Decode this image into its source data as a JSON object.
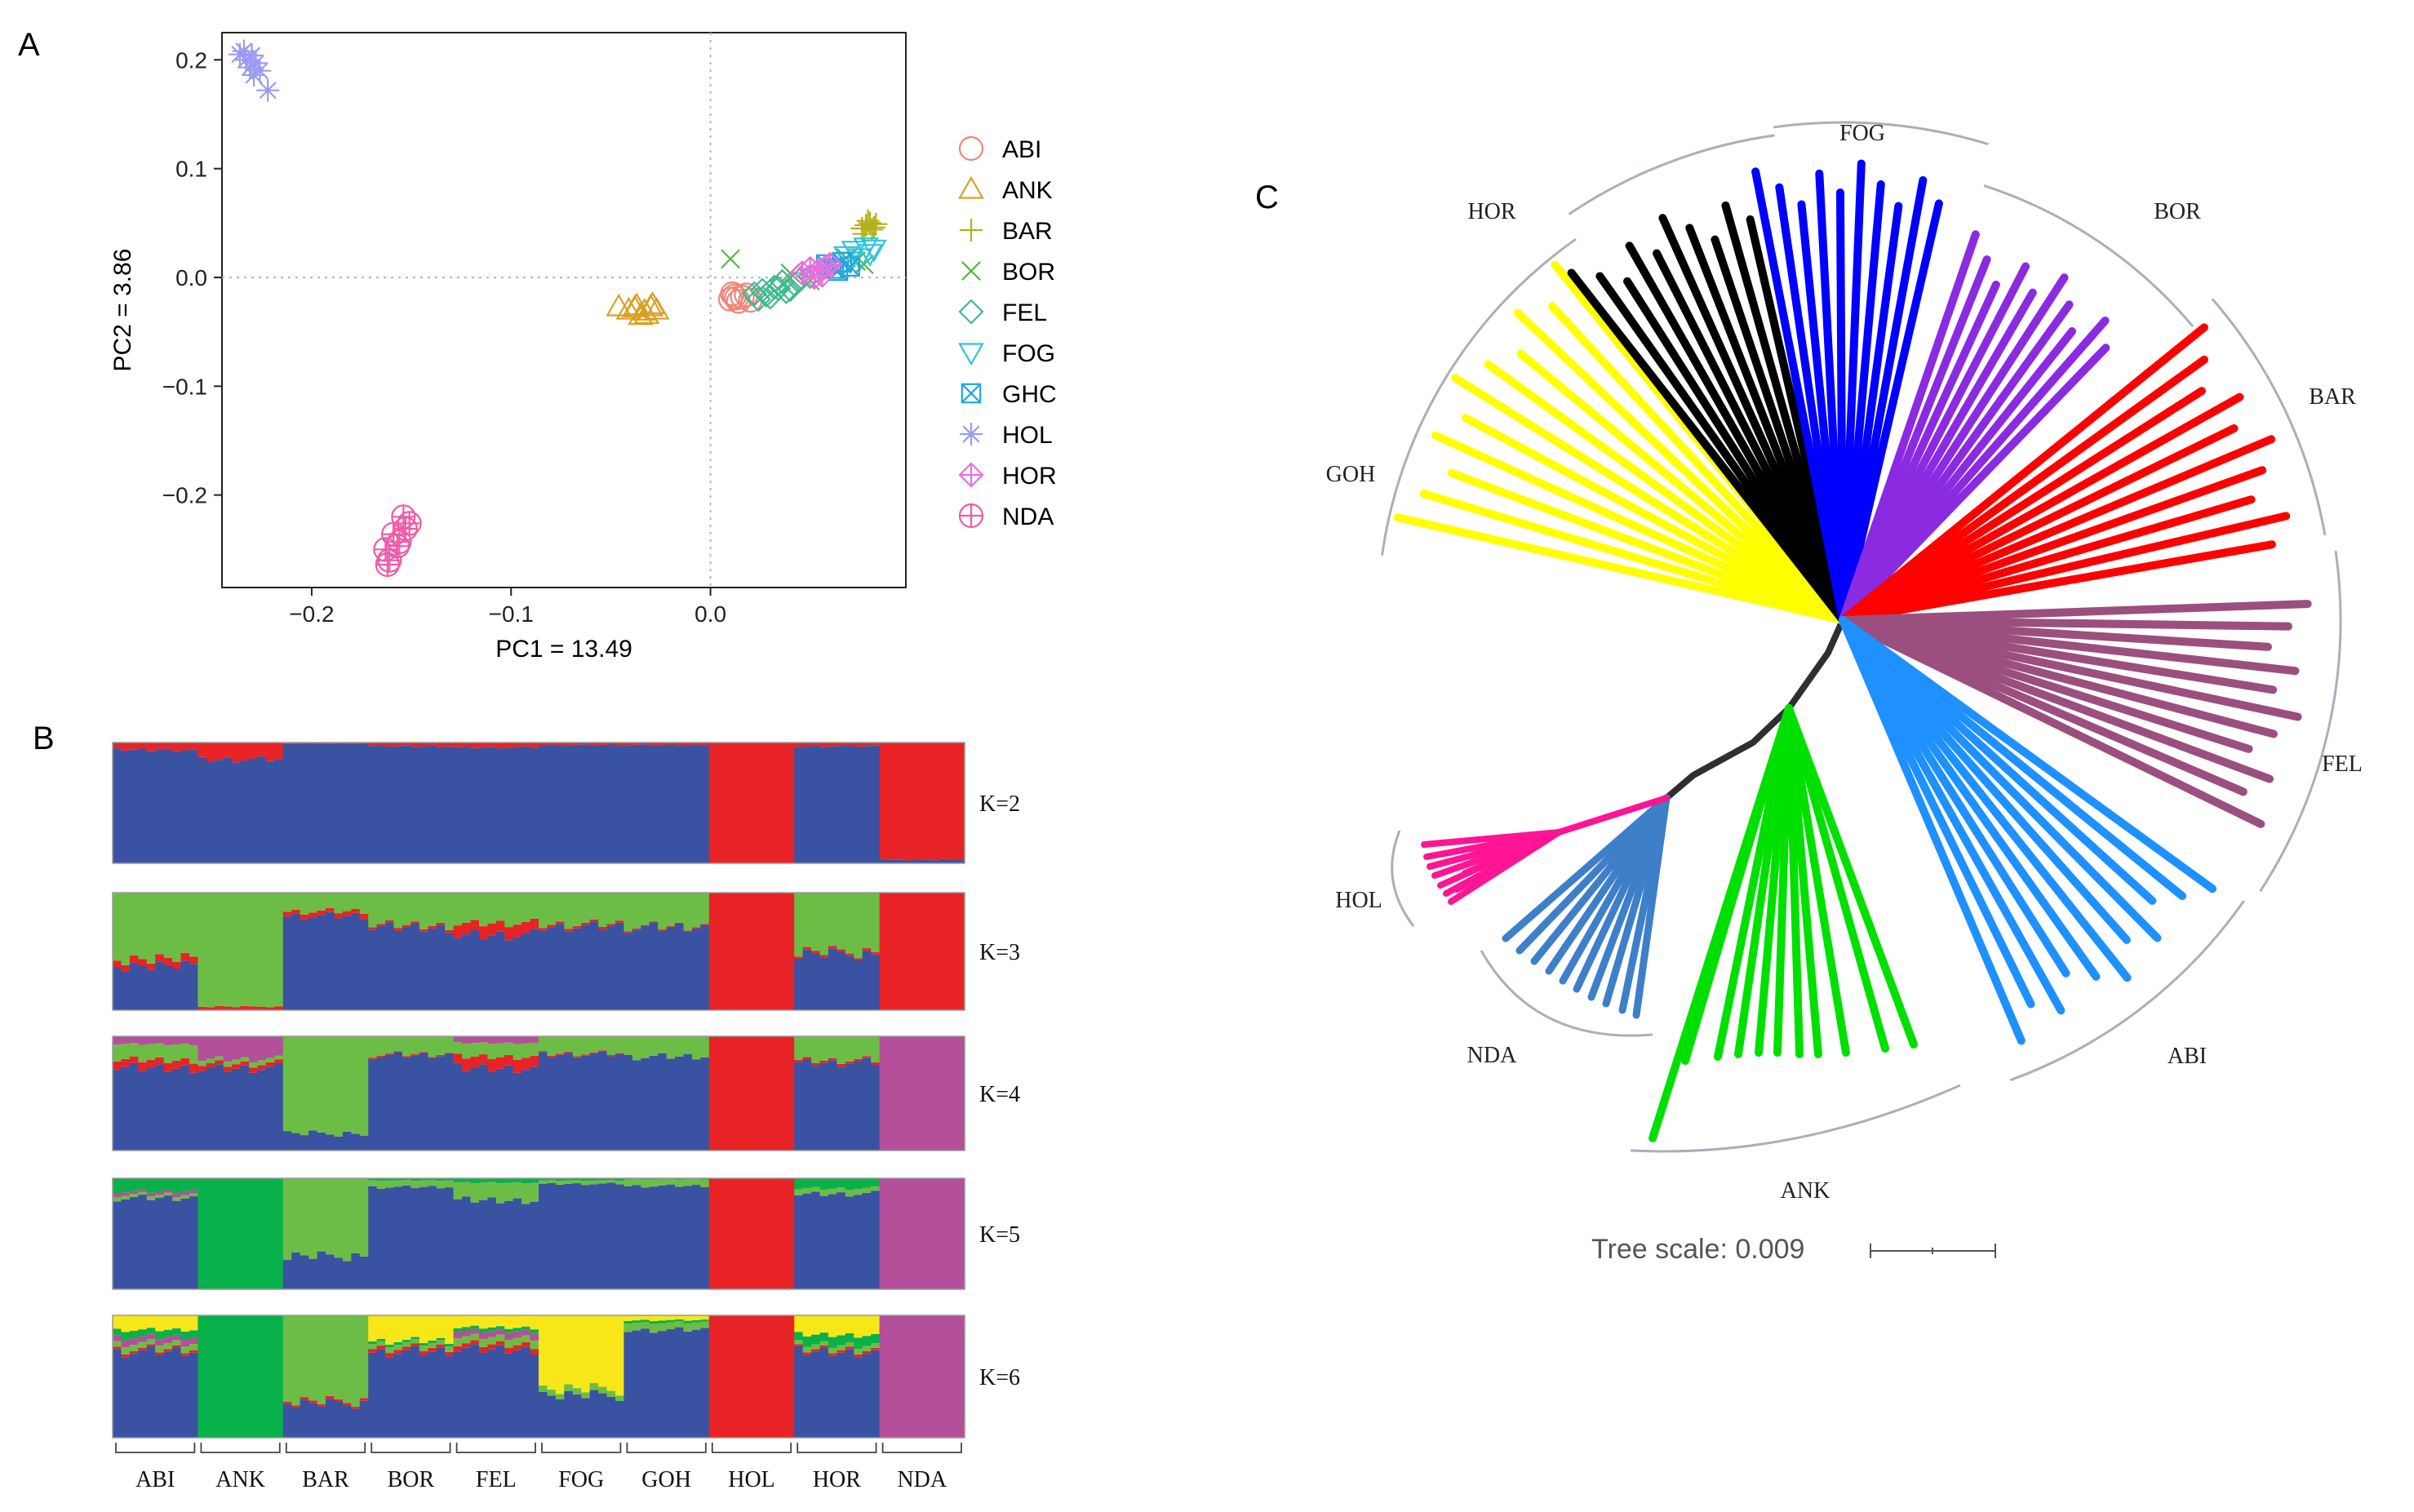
{
  "panels": {
    "a": "A",
    "b": "B",
    "c": "C"
  },
  "chart_data": [
    {
      "id": "pca",
      "type": "scatter",
      "title": "",
      "xlabel": "PC1 = 13.49",
      "ylabel": "PC2 = 3.86",
      "xlim": [
        -0.245,
        0.098
      ],
      "ylim": [
        -0.285,
        0.225
      ],
      "xticks": [
        -0.2,
        -0.1,
        0.0
      ],
      "xtick_labels": [
        "−0.2",
        "−0.1",
        "0.0"
      ],
      "yticks": [
        0.2,
        0.1,
        0.0,
        -0.1,
        -0.2
      ],
      "ytick_labels": [
        "0.2",
        "0.1",
        "0.0",
        "−0.1",
        "−0.2"
      ],
      "grid": false,
      "reference_lines": {
        "x": 0.0,
        "y": 0.0
      },
      "legend_position": "right",
      "series": [
        {
          "name": "ABI",
          "marker": "circle",
          "color": "#f0877a",
          "x": [
            0.01,
            0.012,
            0.014,
            0.016,
            0.018,
            0.02,
            0.011,
            0.013
          ],
          "y": [
            -0.02,
            -0.017,
            -0.022,
            -0.018,
            -0.016,
            -0.021,
            -0.015,
            -0.019
          ]
        },
        {
          "name": "ANK",
          "marker": "triangle",
          "color": "#d9a125",
          "x": [
            -0.046,
            -0.041,
            -0.037,
            -0.033,
            -0.03,
            -0.027,
            -0.032,
            -0.038,
            -0.035,
            -0.029
          ],
          "y": [
            -0.027,
            -0.03,
            -0.026,
            -0.031,
            -0.027,
            -0.03,
            -0.034,
            -0.028,
            -0.035,
            -0.025
          ]
        },
        {
          "name": "BAR",
          "marker": "plus",
          "color": "#b4b018",
          "x": [
            0.076,
            0.078,
            0.08,
            0.082,
            0.079,
            0.081,
            0.077,
            0.083
          ],
          "y": [
            0.045,
            0.048,
            0.05,
            0.046,
            0.052,
            0.044,
            0.04,
            0.049
          ]
        },
        {
          "name": "BOR",
          "marker": "x",
          "color": "#58b742",
          "x": [
            0.01,
            0.04,
            0.05,
            0.068,
            0.073,
            0.077
          ],
          "y": [
            0.017,
            0.004,
            -0.003,
            0.018,
            0.015,
            0.012
          ]
        },
        {
          "name": "FEL",
          "marker": "diamond",
          "color": "#3fba8f",
          "x": [
            0.022,
            0.026,
            0.03,
            0.034,
            0.038,
            0.042,
            0.024,
            0.028,
            0.032,
            0.036,
            0.04,
            0.045,
            0.05
          ],
          "y": [
            -0.015,
            -0.012,
            -0.018,
            -0.01,
            -0.013,
            -0.006,
            -0.02,
            -0.016,
            -0.009,
            -0.004,
            -0.011,
            -0.002,
            0.001
          ]
        },
        {
          "name": "FOG",
          "marker": "triangle-down",
          "color": "#2fc4de",
          "x": [
            0.068,
            0.072,
            0.075,
            0.078,
            0.08,
            0.082,
            0.07
          ],
          "y": [
            0.02,
            0.025,
            0.018,
            0.028,
            0.022,
            0.026,
            0.015
          ]
        },
        {
          "name": "GHC",
          "marker": "square-x",
          "color": "#1ea6e4",
          "x": [
            0.058,
            0.062,
            0.066,
            0.07,
            0.064
          ],
          "y": [
            0.012,
            0.008,
            0.014,
            0.01,
            0.006
          ]
        },
        {
          "name": "HOL",
          "marker": "asterisk",
          "color": "#9b9bf2",
          "x": [
            -0.236,
            -0.233,
            -0.23,
            -0.228,
            -0.231,
            -0.226,
            -0.222,
            -0.234,
            -0.229
          ],
          "y": [
            0.205,
            0.2,
            0.204,
            0.197,
            0.193,
            0.19,
            0.172,
            0.208,
            0.186
          ]
        },
        {
          "name": "HOR",
          "marker": "diamond-plus",
          "color": "#e76fdd",
          "x": [
            0.046,
            0.05,
            0.054,
            0.058,
            0.052,
            0.056,
            0.06
          ],
          "y": [
            0.004,
            0.008,
            0.006,
            0.01,
            0.0,
            0.002,
            0.012
          ]
        },
        {
          "name": "NDA",
          "marker": "circle-plus",
          "color": "#f05aa8",
          "x": [
            -0.163,
            -0.161,
            -0.159,
            -0.157,
            -0.154,
            -0.151,
            -0.153,
            -0.162,
            -0.156
          ],
          "y": [
            -0.25,
            -0.26,
            -0.236,
            -0.247,
            -0.22,
            -0.226,
            -0.231,
            -0.264,
            -0.243
          ]
        }
      ]
    },
    {
      "id": "admixture",
      "type": "bar",
      "stacked": true,
      "populations": [
        "ABI",
        "ANK",
        "BAR",
        "BOR",
        "FEL",
        "FOG",
        "GOH",
        "HOL",
        "HOR",
        "NDA"
      ],
      "samples_per_population": 10,
      "component_colors": [
        "#3a52a2",
        "#e82326",
        "#6cbd45",
        "#b44f9b",
        "#09b14b",
        "#f7e719"
      ],
      "panels": [
        {
          "label": "K=2",
          "k": 2,
          "composition": [
            [
              0.94,
              0.06
            ],
            [
              0.86,
              0.14
            ],
            [
              0.99,
              0.01
            ],
            [
              0.97,
              0.03
            ],
            [
              0.96,
              0.04
            ],
            [
              0.98,
              0.02
            ],
            [
              0.98,
              0.02
            ],
            [
              0.0,
              1.0
            ],
            [
              0.97,
              0.03
            ],
            [
              0.03,
              0.97
            ]
          ]
        },
        {
          "label": "K=3",
          "k": 3,
          "composition": [
            [
              0.38,
              0.06,
              0.56
            ],
            [
              0.0,
              0.03,
              0.97
            ],
            [
              0.8,
              0.04,
              0.16
            ],
            [
              0.7,
              0.02,
              0.28
            ],
            [
              0.64,
              0.1,
              0.26
            ],
            [
              0.71,
              0.02,
              0.27
            ],
            [
              0.7,
              0.01,
              0.29
            ],
            [
              0.0,
              1.0,
              0.0
            ],
            [
              0.48,
              0.02,
              0.5
            ],
            [
              0.0,
              1.0,
              0.0
            ]
          ]
        },
        {
          "label": "K=4",
          "k": 4,
          "composition": [
            [
              0.72,
              0.07,
              0.14,
              0.07
            ],
            [
              0.72,
              0.04,
              0.04,
              0.2
            ],
            [
              0.15,
              0.0,
              0.85,
              0.0
            ],
            [
              0.83,
              0.01,
              0.16,
              0.0
            ],
            [
              0.72,
              0.1,
              0.12,
              0.06
            ],
            [
              0.84,
              0.01,
              0.15,
              0.0
            ],
            [
              0.82,
              0.0,
              0.18,
              0.0
            ],
            [
              0.0,
              1.0,
              0.0,
              0.0
            ],
            [
              0.77,
              0.02,
              0.21,
              0.0
            ],
            [
              0.0,
              0.0,
              0.0,
              1.0
            ]
          ]
        },
        {
          "label": "K=5",
          "k": 5,
          "composition": [
            [
              0.82,
              0.0,
              0.03,
              0.03,
              0.12
            ],
            [
              0.0,
              0.0,
              0.0,
              0.0,
              1.0
            ],
            [
              0.3,
              0.0,
              0.7,
              0.0,
              0.0
            ],
            [
              0.92,
              0.0,
              0.06,
              0.0,
              0.02
            ],
            [
              0.8,
              0.0,
              0.16,
              0.0,
              0.04
            ],
            [
              0.95,
              0.0,
              0.03,
              0.0,
              0.02
            ],
            [
              0.93,
              0.0,
              0.06,
              0.0,
              0.01
            ],
            [
              0.0,
              1.0,
              0.0,
              0.0,
              0.0
            ],
            [
              0.86,
              0.0,
              0.05,
              0.0,
              0.09
            ],
            [
              0.0,
              0.0,
              0.0,
              1.0,
              0.0
            ]
          ]
        },
        {
          "label": "K=6",
          "k": 6,
          "composition": [
            [
              0.7,
              0.02,
              0.05,
              0.05,
              0.06,
              0.12
            ],
            [
              0.0,
              0.0,
              0.0,
              0.0,
              1.0,
              0.0
            ],
            [
              0.28,
              0.02,
              0.7,
              0.0,
              0.0,
              0.0
            ],
            [
              0.7,
              0.03,
              0.04,
              0.0,
              0.02,
              0.21
            ],
            [
              0.72,
              0.04,
              0.06,
              0.05,
              0.03,
              0.1
            ],
            [
              0.35,
              0.0,
              0.05,
              0.0,
              0.0,
              0.6
            ],
            [
              0.88,
              0.0,
              0.06,
              0.0,
              0.02,
              0.04
            ],
            [
              0.0,
              1.0,
              0.0,
              0.0,
              0.0,
              0.0
            ],
            [
              0.7,
              0.02,
              0.04,
              0.0,
              0.08,
              0.16
            ],
            [
              0.0,
              0.0,
              0.0,
              1.0,
              0.0,
              0.0
            ]
          ]
        }
      ]
    },
    {
      "id": "tree",
      "type": "tree",
      "layout": "unrooted radial",
      "scale_label": "Tree scale: 0.009",
      "clades": [
        {
          "name": "GOH",
          "color": "#ffff00",
          "leaves": 11
        },
        {
          "name": "HOR",
          "color": "#000000",
          "leaves": 10
        },
        {
          "name": "FOG",
          "color": "#0000ff",
          "leaves": 10
        },
        {
          "name": "BOR",
          "color": "#8a2be2",
          "leaves": 10
        },
        {
          "name": "BAR",
          "color": "#ff0000",
          "leaves": 10
        },
        {
          "name": "FEL",
          "color": "#9b4f7e",
          "leaves": 11
        },
        {
          "name": "ABI",
          "color": "#1e90ff",
          "leaves": 11
        },
        {
          "name": "ANK",
          "color": "#00e000",
          "leaves": 11
        },
        {
          "name": "NDA",
          "color": "#3d7fc9",
          "leaves": 10
        },
        {
          "name": "HOL",
          "color": "#ff1493",
          "leaves": 9
        }
      ]
    }
  ]
}
